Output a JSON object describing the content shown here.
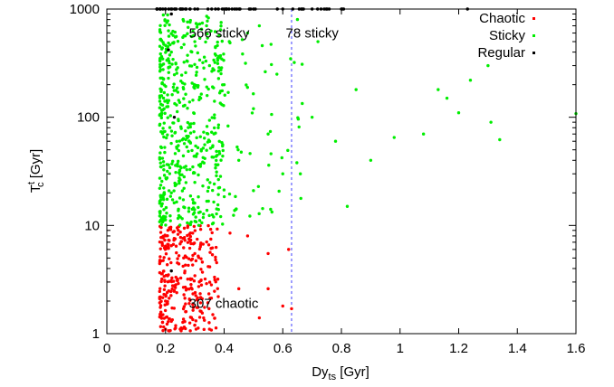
{
  "chart_data": {
    "type": "scatter",
    "title": "",
    "xlabel": "Dy",
    "xlabel_subscript": "ts",
    "xlabel_unit": " [Gyr]",
    "ylabel": "T",
    "ylabel_superscript": "t",
    "ylabel_subscript": "c",
    "ylabel_unit": " [Gyr]",
    "xlim": [
      0,
      1.6
    ],
    "ylim": [
      1,
      1000
    ],
    "yscale": "log",
    "xticks": [
      "0",
      "0.2",
      "0.4",
      "0.6",
      "0.8",
      "1",
      "1.2",
      "1.4",
      "1.6"
    ],
    "yticks": [
      "1",
      "10",
      "100",
      "1000"
    ],
    "grid": false,
    "legend_position": "top-right",
    "vline": {
      "x": 0.63,
      "style": "dashed",
      "color": "#4040ff"
    },
    "annotations": [
      {
        "text": "566 sticky",
        "x": 0.28,
        "y": 600
      },
      {
        "text": "78 sticky",
        "x": 0.61,
        "y": 600
      },
      {
        "text": "307 chaotic",
        "x": 0.28,
        "y": 1.9
      }
    ],
    "series": [
      {
        "name": "Chaotic",
        "color": "#ff0000",
        "points": [
          [
            0.2,
            1.1
          ],
          [
            0.22,
            1.3
          ],
          [
            0.25,
            1.1
          ],
          [
            0.3,
            1.2
          ],
          [
            0.35,
            1.1
          ],
          [
            0.2,
            2
          ],
          [
            0.23,
            2.5
          ],
          [
            0.27,
            1.6
          ],
          [
            0.33,
            1.4
          ],
          [
            0.38,
            2.2
          ],
          [
            0.45,
            2.6
          ],
          [
            0.52,
            1.4
          ],
          [
            0.55,
            2.6
          ],
          [
            0.6,
            1.8
          ],
          [
            0.63,
            1.7
          ],
          [
            0.21,
            3.5
          ],
          [
            0.26,
            4.2
          ],
          [
            0.3,
            5.5
          ],
          [
            0.36,
            6.2
          ],
          [
            0.2,
            8
          ],
          [
            0.24,
            9.5
          ],
          [
            0.28,
            7.5
          ],
          [
            0.32,
            9.2
          ],
          [
            0.42,
            8.5
          ],
          [
            0.48,
            8
          ],
          [
            0.55,
            5.5
          ],
          [
            0.62,
            6
          ],
          [
            0.22,
            6.5
          ],
          [
            0.29,
            3.2
          ],
          [
            0.34,
            2.9
          ]
        ]
      },
      {
        "name": "Sticky",
        "color": "#00ee00",
        "points": [
          [
            0.2,
            12
          ],
          [
            0.22,
            20
          ],
          [
            0.25,
            35
          ],
          [
            0.28,
            60
          ],
          [
            0.3,
            25
          ],
          [
            0.32,
            150
          ],
          [
            0.35,
            300
          ],
          [
            0.38,
            80
          ],
          [
            0.4,
            200
          ],
          [
            0.45,
            40
          ],
          [
            0.5,
            120
          ],
          [
            0.55,
            70
          ],
          [
            0.6,
            30
          ],
          [
            0.22,
            400
          ],
          [
            0.26,
            800
          ],
          [
            0.3,
            500
          ],
          [
            0.48,
            600
          ],
          [
            0.52,
            700
          ],
          [
            0.58,
            250
          ],
          [
            0.66,
            30
          ],
          [
            0.7,
            100
          ],
          [
            0.78,
            60
          ],
          [
            0.82,
            15
          ],
          [
            0.85,
            180
          ],
          [
            0.9,
            40
          ],
          [
            0.98,
            65
          ],
          [
            1.08,
            70
          ],
          [
            1.13,
            180
          ],
          [
            1.16,
            150
          ],
          [
            1.2,
            110
          ],
          [
            1.24,
            220
          ],
          [
            1.3,
            300
          ],
          [
            1.31,
            90
          ],
          [
            1.34,
            62
          ],
          [
            1.6,
            108
          ],
          [
            0.72,
            500
          ],
          [
            0.65,
            800
          ]
        ]
      },
      {
        "name": "Regular",
        "color": "#000000",
        "points": [
          [
            0.2,
            1000
          ],
          [
            0.25,
            1000
          ],
          [
            0.3,
            1000
          ],
          [
            0.4,
            1000
          ],
          [
            0.5,
            1000
          ],
          [
            0.6,
            1000
          ],
          [
            0.7,
            1000
          ],
          [
            0.8,
            1000
          ],
          [
            0.22,
            900
          ],
          [
            0.21,
            420
          ],
          [
            0.23,
            100
          ],
          [
            0.22,
            3.8
          ],
          [
            1.23,
            1000
          ]
        ]
      }
    ]
  }
}
